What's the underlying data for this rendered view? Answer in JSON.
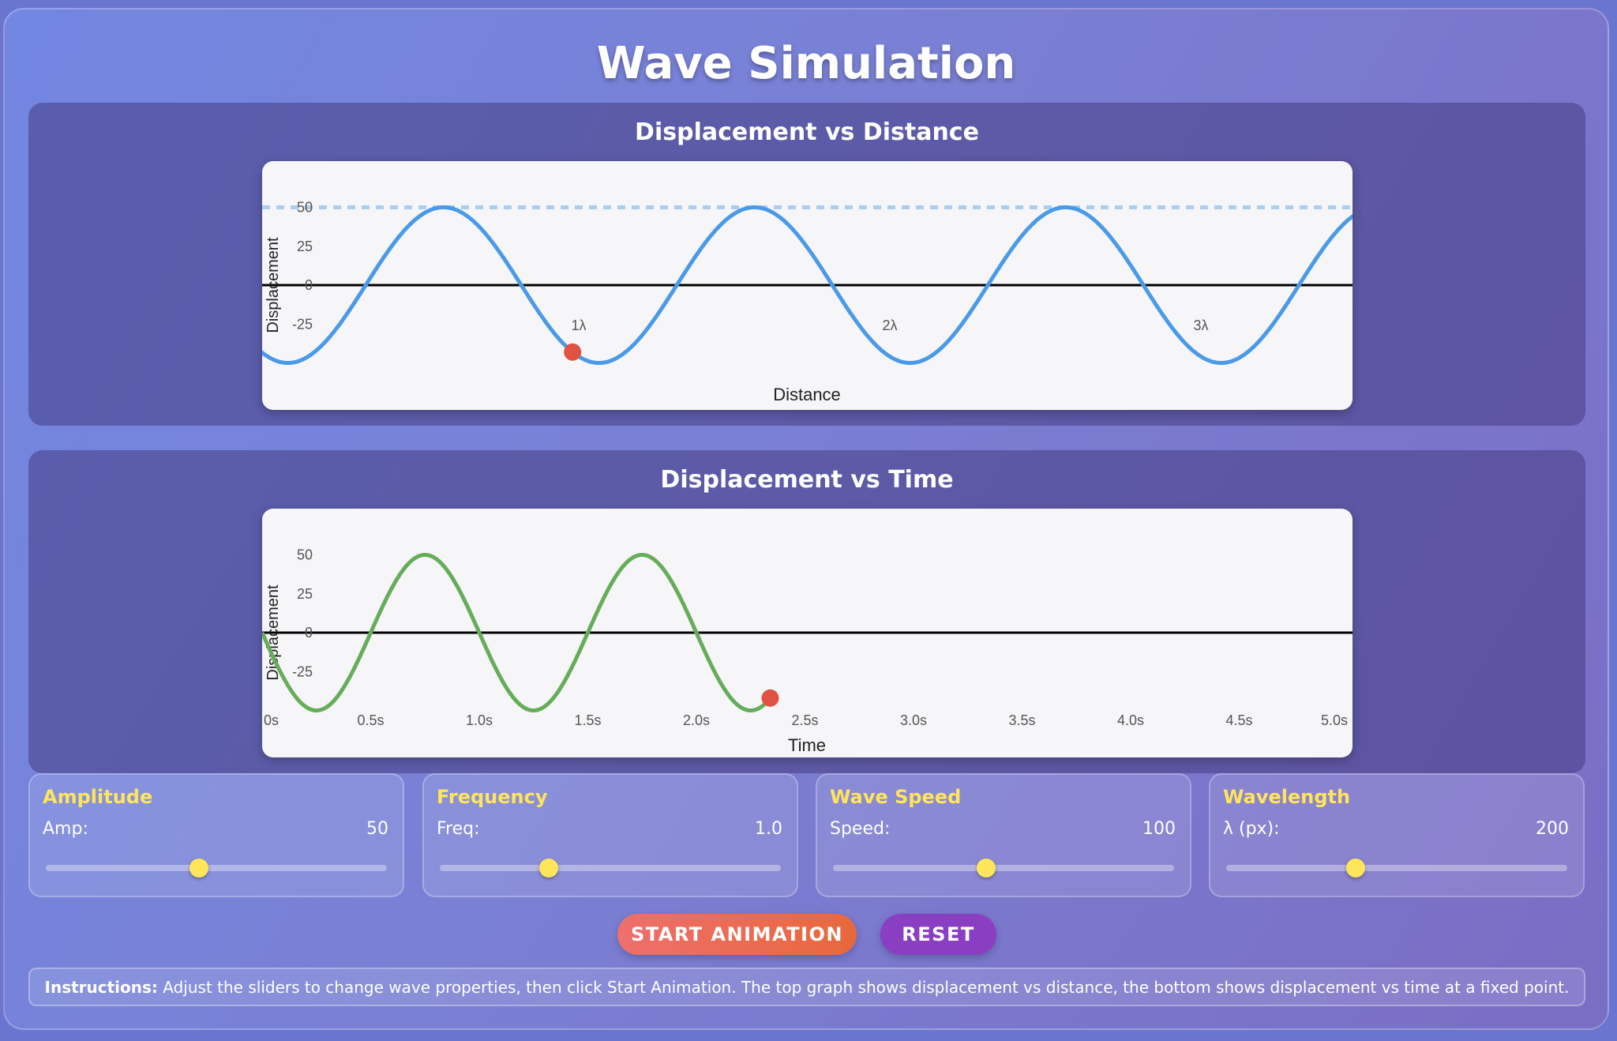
{
  "title": "Wave Simulation",
  "colors": {
    "wave_distance": "#4a9ae8",
    "wave_time": "#66ad5a",
    "marker": "#e25243",
    "accent": "#ffe55a"
  },
  "chart_data": [
    {
      "type": "line",
      "title": "Displacement vs Distance",
      "xlabel": "Distance",
      "ylabel": "Displacement",
      "ylim": [
        -50,
        50
      ],
      "xlim": [
        0,
        700
      ],
      "yticks": [
        "50",
        "25",
        "0",
        "-25"
      ],
      "xticks": [
        {
          "value": 200,
          "label": "1λ"
        },
        {
          "value": 400,
          "label": "2λ"
        },
        {
          "value": 600,
          "label": "3λ"
        }
      ],
      "amplitude_line": 50,
      "series": {
        "function": "-50*cos(2π(x-11)/200)",
        "amplitude": 50,
        "wavelength": 200
      },
      "marker": {
        "x": 194,
        "y": -43
      },
      "grid": false
    },
    {
      "type": "line",
      "title": "Displacement vs Time",
      "xlabel": "Time",
      "ylabel": "Displacement",
      "ylim": [
        -50,
        50
      ],
      "xlim": [
        0,
        5
      ],
      "yticks": [
        "50",
        "25",
        "0",
        "-25"
      ],
      "xticks": [
        "0s",
        "0.5s",
        "1.0s",
        "1.5s",
        "2.0s",
        "2.5s",
        "3.0s",
        "3.5s",
        "4.0s",
        "4.5s",
        "5.0s"
      ],
      "series": {
        "function": "-50*sin(2π·1.0·t)",
        "amplitude": 50,
        "frequency": 1.0,
        "t_end": 2.34
      },
      "marker": {
        "x": 2.34,
        "y": -42
      },
      "grid": false
    }
  ],
  "controls": [
    {
      "title": "Amplitude",
      "label": "Amp:",
      "value": "50",
      "fraction": 0.45
    },
    {
      "title": "Frequency",
      "label": "Freq:",
      "value": "1.0",
      "fraction": 0.32
    },
    {
      "title": "Wave Speed",
      "label": "Speed:",
      "value": "100",
      "fraction": 0.45
    },
    {
      "title": "Wavelength",
      "label": "λ (px):",
      "value": "200",
      "fraction": 0.38
    }
  ],
  "buttons": {
    "start": "START ANIMATION",
    "reset": "RESET"
  },
  "instructions": {
    "bold": "Instructions:",
    "text": " Adjust the sliders to change wave properties, then click Start Animation. The top graph shows displacement vs distance, the bottom shows displacement vs time at a fixed point."
  }
}
